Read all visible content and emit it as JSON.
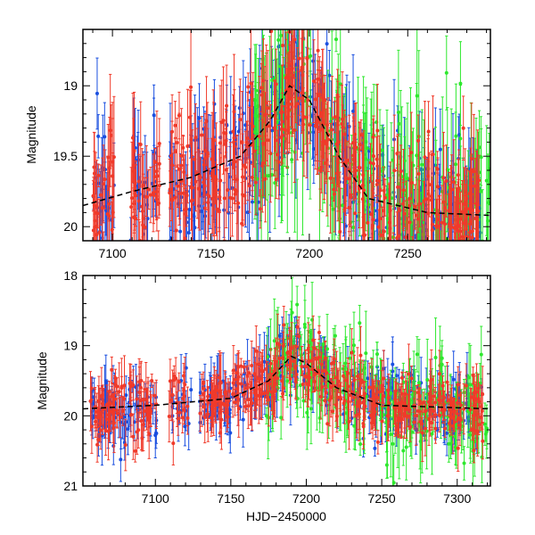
{
  "chart_data": [
    {
      "type": "scatter",
      "panel": "top",
      "title": "",
      "xlabel": "",
      "ylabel": "Magnitude",
      "xlim": [
        7085,
        7292
      ],
      "ylim": [
        20.1,
        18.6
      ],
      "y_inverted": true,
      "x_ticks": [
        "7100",
        "7150",
        "7200",
        "7250"
      ],
      "x_tick_values": [
        7100,
        7150,
        7200,
        7250
      ],
      "y_ticks": [
        "19",
        "19.5",
        "20"
      ],
      "y_tick_values": [
        19,
        19.5,
        20
      ],
      "series": [
        {
          "name": "red",
          "color": "#f03a2a",
          "note": "dense photometry with error bars"
        },
        {
          "name": "blue",
          "color": "#1a4fe0",
          "note": "dense photometry with error bars"
        },
        {
          "name": "green",
          "color": "#2ee82e",
          "note": "photometry with error bars, mostly after 7175"
        }
      ],
      "model_curve": [
        [
          7085,
          19.85
        ],
        [
          7110,
          19.75
        ],
        [
          7140,
          19.65
        ],
        [
          7165,
          19.5
        ],
        [
          7180,
          19.25
        ],
        [
          7190,
          19.0
        ],
        [
          7200,
          19.1
        ],
        [
          7215,
          19.5
        ],
        [
          7230,
          19.8
        ],
        [
          7260,
          19.9
        ],
        [
          7292,
          19.92
        ]
      ]
    },
    {
      "type": "scatter",
      "panel": "bottom",
      "title": "",
      "xlabel": "HJD−2450000",
      "ylabel": "Magnitude",
      "xlim": [
        7052,
        7322
      ],
      "ylim": [
        21,
        18
      ],
      "y_inverted": true,
      "x_ticks": [
        "7100",
        "7150",
        "7200",
        "7250",
        "7300"
      ],
      "x_tick_values": [
        7100,
        7150,
        7200,
        7250,
        7300
      ],
      "y_ticks": [
        "18",
        "19",
        "20",
        "21"
      ],
      "y_tick_values": [
        18,
        19,
        20,
        21
      ],
      "series": [
        {
          "name": "red",
          "color": "#f03a2a",
          "note": "dense photometry with error bars"
        },
        {
          "name": "blue",
          "color": "#1a4fe0",
          "note": "dense photometry with error bars"
        },
        {
          "name": "green",
          "color": "#2ee82e",
          "note": "photometry with error bars, mostly after 7175"
        }
      ],
      "model_curve": [
        [
          7052,
          19.9
        ],
        [
          7100,
          19.85
        ],
        [
          7150,
          19.75
        ],
        [
          7175,
          19.5
        ],
        [
          7190,
          19.15
        ],
        [
          7200,
          19.25
        ],
        [
          7220,
          19.6
        ],
        [
          7250,
          19.85
        ],
        [
          7322,
          19.9
        ]
      ]
    }
  ]
}
